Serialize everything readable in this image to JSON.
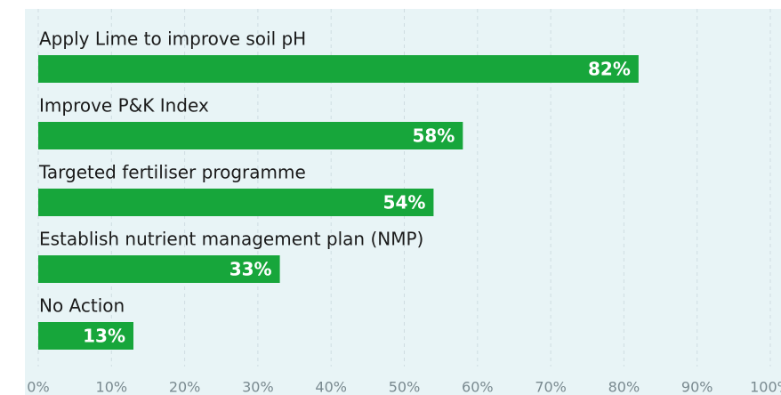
{
  "chart_data": {
    "type": "bar",
    "orientation": "horizontal",
    "categories": [
      "Apply Lime to improve soil pH",
      "Improve P&K Index",
      "Targeted fertiliser programme",
      "Establish nutrient management plan (NMP)",
      "No Action"
    ],
    "values": [
      82,
      58,
      54,
      33,
      13
    ],
    "value_labels": [
      "82%",
      "58%",
      "54%",
      "33%",
      "13%"
    ],
    "color": "#17a63b",
    "xlim": [
      0,
      100
    ],
    "xticks": [
      {
        "value": 0,
        "label": "0%"
      },
      {
        "value": 10,
        "label": "10%"
      },
      {
        "value": 20,
        "label": "20%"
      },
      {
        "value": 30,
        "label": "30%"
      },
      {
        "value": 40,
        "label": "40%"
      },
      {
        "value": 50,
        "label": "50%"
      },
      {
        "value": 60,
        "label": "60%"
      },
      {
        "value": 70,
        "label": "70%"
      },
      {
        "value": 80,
        "label": "80%"
      },
      {
        "value": 90,
        "label": "90%"
      },
      {
        "value": 100,
        "label": "100%"
      }
    ],
    "grid": true
  }
}
